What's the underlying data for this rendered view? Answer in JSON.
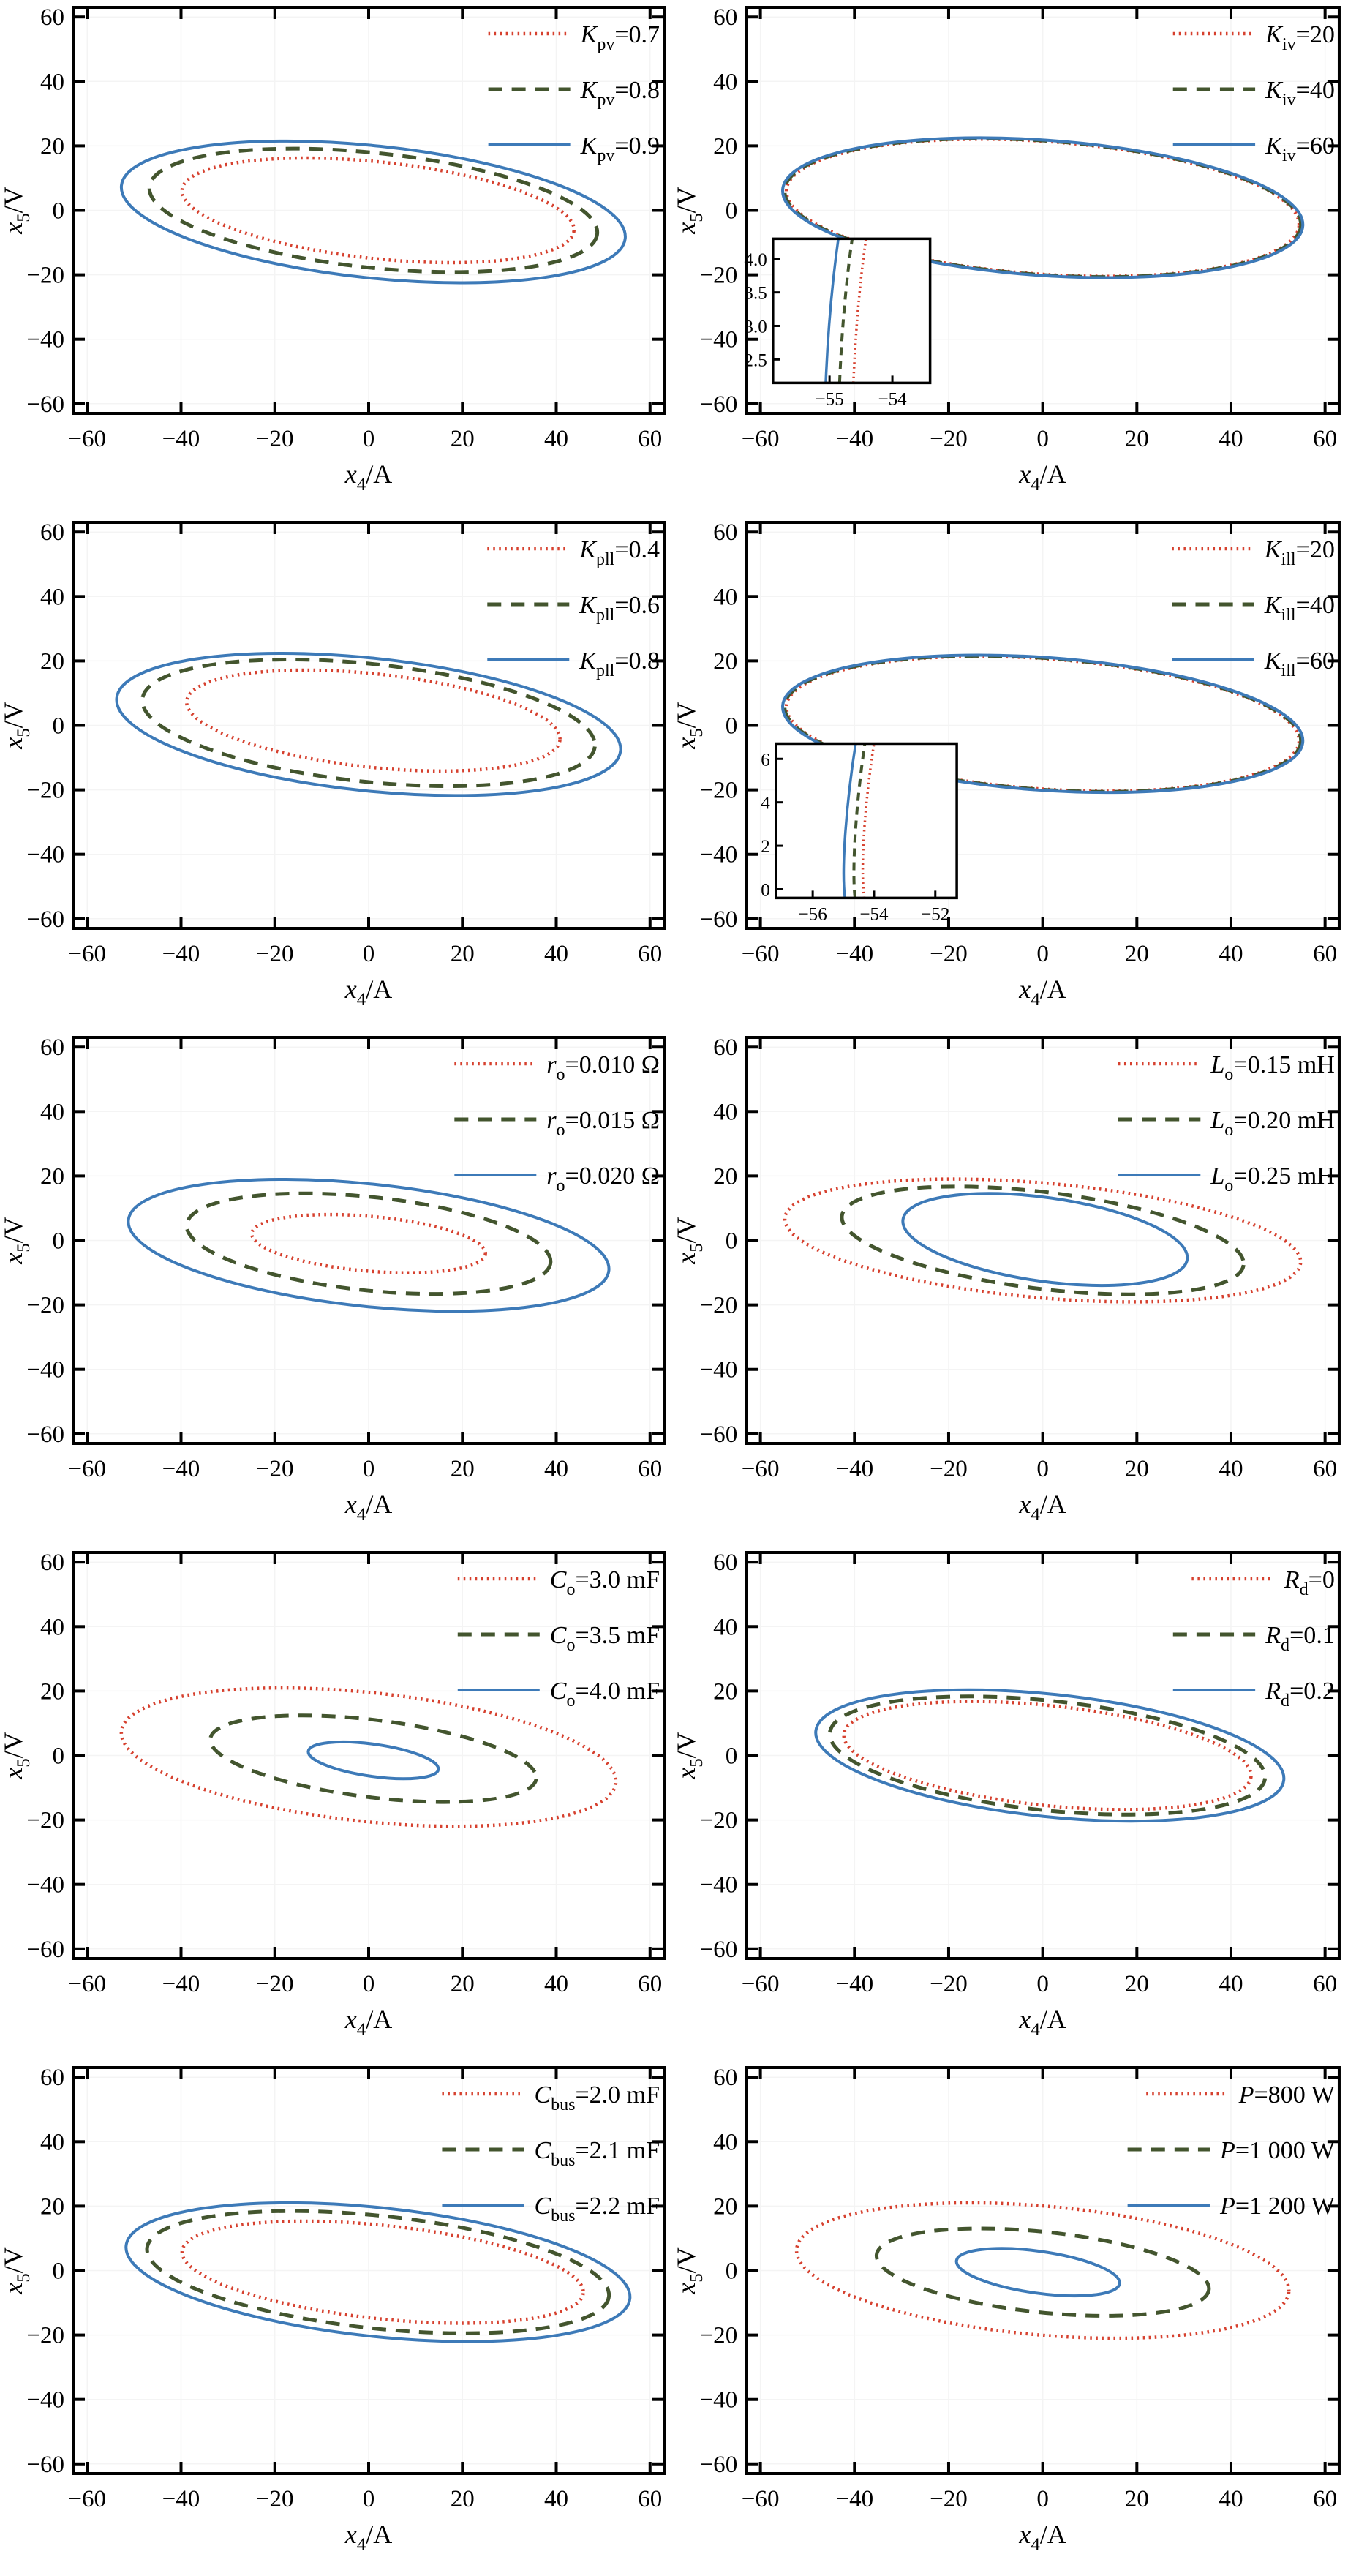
{
  "figure_type": "ellipse-contour-grid",
  "axes": {
    "xlabel": {
      "var": "x",
      "sub": "4",
      "rest": "/A"
    },
    "ylabel": {
      "var": "x",
      "sub": "5",
      "rest": "/V"
    },
    "tick_values": [
      -60,
      -40,
      -20,
      0,
      20,
      40,
      60
    ],
    "tick_labels": [
      "−60",
      "−40",
      "−20",
      "0",
      "20",
      "40",
      "60"
    ],
    "xlim": [
      -60,
      60
    ],
    "ylim": [
      -60,
      60
    ],
    "grid": "off",
    "legend_position": "top-right-inside"
  },
  "styles": {
    "series_colors": [
      "#d6402e",
      "#43552e",
      "#3d7ab8"
    ],
    "series_styles": [
      "dotted",
      "dashed",
      "solid"
    ],
    "spine_color": "#000000",
    "background": "#ffffff"
  },
  "chart_data": [
    {
      "name": "kpv",
      "type": "line",
      "param": "K_pv",
      "legend": [
        {
          "var": "K",
          "sub": "pv",
          "value": "=0.7",
          "style": "dotted",
          "color": "#d6402e"
        },
        {
          "var": "K",
          "sub": "pv",
          "value": "=0.8",
          "style": "dashed",
          "color": "#43552e"
        },
        {
          "var": "K",
          "sub": "pv",
          "value": "=0.9",
          "style": "solid",
          "color": "#3d7ab8"
        }
      ],
      "ellipses": [
        {
          "cx": 2,
          "cy": 0,
          "rx": 42,
          "ry": 15,
          "tilt": 6
        },
        {
          "cx": 1,
          "cy": 0,
          "rx": 48,
          "ry": 17.8,
          "tilt": 6
        },
        {
          "cx": 1,
          "cy": -0.5,
          "rx": 54,
          "ry": 20.5,
          "tilt": 6
        }
      ],
      "inset": null
    },
    {
      "name": "kiv",
      "type": "line",
      "param": "K_iv",
      "legend": [
        {
          "var": "K",
          "sub": "iv",
          "value": "=20",
          "style": "dotted",
          "color": "#d6402e"
        },
        {
          "var": "K",
          "sub": "iv",
          "value": "=40",
          "style": "dashed",
          "color": "#43552e"
        },
        {
          "var": "K",
          "sub": "iv",
          "value": "=60",
          "style": "solid",
          "color": "#3d7ab8"
        }
      ],
      "ellipses": [
        {
          "cx": 0,
          "cy": 0.8,
          "rx": 54.6,
          "ry": 20.6,
          "tilt": 4
        },
        {
          "cx": 0,
          "cy": 0.8,
          "rx": 55,
          "ry": 20.8,
          "tilt": 4
        },
        {
          "cx": 0,
          "cy": 0.8,
          "rx": 55.4,
          "ry": 21,
          "tilt": 4
        }
      ],
      "inset": {
        "x_range": [
          -55.9,
          -53.4
        ],
        "y_range": [
          2.15,
          4.3
        ],
        "x_ticks": [
          -55,
          -54
        ],
        "x_tick_labels": [
          "−55",
          "−54"
        ],
        "y_ticks": [
          2.5,
          3.0,
          3.5,
          4.0
        ],
        "y_tick_labels": [
          "2.5",
          "3.0",
          "3.5",
          "4.0"
        ],
        "pos": {
          "x": 0.045,
          "y": 0.57,
          "w": 0.265,
          "h": 0.355
        },
        "curves": [
          {
            "pts": [
              [
                -54.62,
                2.15
              ],
              [
                -54.57,
                3.3
              ],
              [
                -54.42,
                4.3
              ]
            ]
          },
          {
            "pts": [
              [
                -54.84,
                2.15
              ],
              [
                -54.79,
                3.3
              ],
              [
                -54.64,
                4.3
              ]
            ]
          },
          {
            "pts": [
              [
                -55.06,
                2.15
              ],
              [
                -55.01,
                3.3
              ],
              [
                -54.86,
                4.3
              ]
            ]
          }
        ]
      }
    },
    {
      "name": "kpll",
      "type": "line",
      "param": "K_pll",
      "legend": [
        {
          "var": "K",
          "sub": "pll",
          "value": "=0.4",
          "style": "dotted",
          "color": "#d6402e"
        },
        {
          "var": "K",
          "sub": "pll",
          "value": "=0.6",
          "style": "dashed",
          "color": "#43552e"
        },
        {
          "var": "K",
          "sub": "pll",
          "value": "=0.8",
          "style": "solid",
          "color": "#3d7ab8"
        }
      ],
      "ellipses": [
        {
          "cx": 1,
          "cy": 1.5,
          "rx": 40,
          "ry": 14.5,
          "tilt": 6
        },
        {
          "cx": 0,
          "cy": 0.8,
          "rx": 48.5,
          "ry": 18.3,
          "tilt": 6
        },
        {
          "cx": 0,
          "cy": 0.3,
          "rx": 54,
          "ry": 20.6,
          "tilt": 6
        }
      ],
      "inset": null
    },
    {
      "name": "kill",
      "type": "line",
      "param": "K_ill",
      "legend": [
        {
          "var": "K",
          "sub": "ill",
          "value": "=20",
          "style": "dotted",
          "color": "#d6402e"
        },
        {
          "var": "K",
          "sub": "ill",
          "value": "=40",
          "style": "dashed",
          "color": "#43552e"
        },
        {
          "var": "K",
          "sub": "ill",
          "value": "=60",
          "style": "solid",
          "color": "#3d7ab8"
        }
      ],
      "ellipses": [
        {
          "cx": 0,
          "cy": 0.5,
          "rx": 54.6,
          "ry": 20.2,
          "tilt": 4
        },
        {
          "cx": 0,
          "cy": 0.5,
          "rx": 55,
          "ry": 20.4,
          "tilt": 4
        },
        {
          "cx": 0,
          "cy": 0.5,
          "rx": 55.4,
          "ry": 20.6,
          "tilt": 4
        }
      ],
      "inset": {
        "x_range": [
          -57.2,
          -51.3
        ],
        "y_range": [
          -0.4,
          6.7
        ],
        "x_ticks": [
          -56,
          -54,
          -52
        ],
        "x_tick_labels": [
          "−56",
          "−54",
          "−52"
        ],
        "y_ticks": [
          0,
          2,
          4,
          6
        ],
        "y_tick_labels": [
          "0",
          "2",
          "4",
          "6"
        ],
        "pos": {
          "x": 0.05,
          "y": 0.545,
          "w": 0.305,
          "h": 0.38
        },
        "curves": [
          {
            "pts": [
              [
                -54.32,
                -0.4
              ],
              [
                -54.45,
                1.0
              ],
              [
                -54.3,
                4.0
              ],
              [
                -54.0,
                6.7
              ]
            ]
          },
          {
            "pts": [
              [
                -54.62,
                -0.4
              ],
              [
                -54.73,
                1.0
              ],
              [
                -54.58,
                4.0
              ],
              [
                -54.3,
                6.7
              ]
            ]
          },
          {
            "pts": [
              [
                -54.95,
                -0.4
              ],
              [
                -55.07,
                1.0
              ],
              [
                -54.9,
                4.0
              ],
              [
                -54.6,
                6.7
              ]
            ]
          }
        ]
      }
    },
    {
      "name": "ro",
      "type": "line",
      "param": "r_o",
      "legend": [
        {
          "var": "r",
          "sub": "o",
          "value": "=0.010 Ω",
          "style": "dotted",
          "color": "#d6402e"
        },
        {
          "var": "r",
          "sub": "o",
          "value": "=0.015 Ω",
          "style": "dashed",
          "color": "#43552e"
        },
        {
          "var": "r",
          "sub": "o",
          "value": "=0.020 Ω",
          "style": "solid",
          "color": "#3d7ab8"
        }
      ],
      "ellipses": [
        {
          "cx": 0,
          "cy": -1,
          "rx": 25,
          "ry": 8.5,
          "tilt": 5
        },
        {
          "cx": 0,
          "cy": -1,
          "rx": 39,
          "ry": 14.5,
          "tilt": 6
        },
        {
          "cx": 0,
          "cy": -1.5,
          "rx": 51.5,
          "ry": 19,
          "tilt": 6
        }
      ],
      "inset": null
    },
    {
      "name": "lo",
      "type": "line",
      "param": "L_o",
      "legend": [
        {
          "var": "L",
          "sub": "o",
          "value": "=0.15 mH",
          "style": "dotted",
          "color": "#d6402e"
        },
        {
          "var": "L",
          "sub": "o",
          "value": "=0.20 mH",
          "style": "dashed",
          "color": "#43552e"
        },
        {
          "var": "L",
          "sub": "o",
          "value": "=0.25 mH",
          "style": "solid",
          "color": "#3d7ab8"
        }
      ],
      "ellipses": [
        {
          "cx": 0,
          "cy": 0,
          "rx": 55,
          "ry": 17.8,
          "tilt": 5
        },
        {
          "cx": 0,
          "cy": 0,
          "rx": 43,
          "ry": 15,
          "tilt": 7
        },
        {
          "cx": 0.5,
          "cy": 0.3,
          "rx": 30.5,
          "ry": 13,
          "tilt": 8
        }
      ],
      "inset": null
    },
    {
      "name": "co",
      "type": "line",
      "param": "C_o",
      "legend": [
        {
          "var": "C",
          "sub": "o",
          "value": "=3.0 mF",
          "style": "dotted",
          "color": "#d6402e"
        },
        {
          "var": "C",
          "sub": "o",
          "value": "=3.5 mF",
          "style": "dashed",
          "color": "#43552e"
        },
        {
          "var": "C",
          "sub": "o",
          "value": "=4.0 mF",
          "style": "solid",
          "color": "#3d7ab8"
        }
      ],
      "ellipses": [
        {
          "cx": 0,
          "cy": -0.5,
          "rx": 53,
          "ry": 20,
          "tilt": 6
        },
        {
          "cx": 1,
          "cy": -1,
          "rx": 35,
          "ry": 12,
          "tilt": 7
        },
        {
          "cx": 1,
          "cy": -1.5,
          "rx": 14,
          "ry": 5,
          "tilt": 8
        }
      ],
      "inset": null
    },
    {
      "name": "rd",
      "type": "line",
      "param": "R_d",
      "legend": [
        {
          "var": "R",
          "sub": "d",
          "value": "=0",
          "style": "dotted",
          "color": "#d6402e"
        },
        {
          "var": "R",
          "sub": "d",
          "value": "=0.1",
          "style": "dashed",
          "color": "#43552e"
        },
        {
          "var": "R",
          "sub": "d",
          "value": "=0.2",
          "style": "solid",
          "color": "#3d7ab8"
        }
      ],
      "ellipses": [
        {
          "cx": 1,
          "cy": 0,
          "rx": 43.5,
          "ry": 15.5,
          "tilt": 6
        },
        {
          "cx": 1,
          "cy": 0,
          "rx": 46.5,
          "ry": 17,
          "tilt": 6
        },
        {
          "cx": 1.5,
          "cy": 0,
          "rx": 50,
          "ry": 19,
          "tilt": 6
        }
      ],
      "inset": null
    },
    {
      "name": "cbus",
      "type": "line",
      "param": "C_bus",
      "legend": [
        {
          "var": "C",
          "sub": "bus",
          "value": "=2.0 mF",
          "style": "dotted",
          "color": "#d6402e"
        },
        {
          "var": "C",
          "sub": "bus",
          "value": "=2.1 mF",
          "style": "dashed",
          "color": "#43552e"
        },
        {
          "var": "C",
          "sub": "bus",
          "value": "=2.2 mF",
          "style": "solid",
          "color": "#3d7ab8"
        }
      ],
      "ellipses": [
        {
          "cx": 3,
          "cy": -0.5,
          "rx": 43,
          "ry": 14.5,
          "tilt": 6
        },
        {
          "cx": 2,
          "cy": -0.5,
          "rx": 49.5,
          "ry": 17.5,
          "tilt": 6
        },
        {
          "cx": 2,
          "cy": -0.5,
          "rx": 54,
          "ry": 20,
          "tilt": 6
        }
      ],
      "inset": null
    },
    {
      "name": "p",
      "type": "line",
      "param": "P",
      "legend": [
        {
          "var": "P",
          "sub": "",
          "value": "=800 W",
          "style": "dotted",
          "color": "#d6402e"
        },
        {
          "var": "P",
          "sub": "",
          "value": "=1 000 W",
          "style": "dashed",
          "color": "#43552e"
        },
        {
          "var": "P",
          "sub": "",
          "value": "=1 200 W",
          "style": "solid",
          "color": "#3d7ab8"
        }
      ],
      "ellipses": [
        {
          "cx": 0,
          "cy": 0,
          "rx": 52.5,
          "ry": 20,
          "tilt": 5
        },
        {
          "cx": 0,
          "cy": -0.5,
          "rx": 35.5,
          "ry": 12.5,
          "tilt": 6
        },
        {
          "cx": -1,
          "cy": -0.5,
          "rx": 17.5,
          "ry": 6.5,
          "tilt": 8
        }
      ],
      "inset": null
    }
  ]
}
